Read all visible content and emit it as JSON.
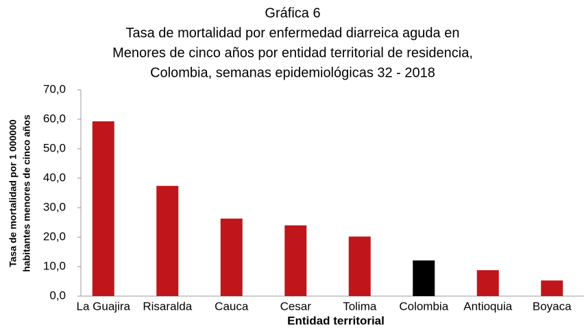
{
  "chart_data": {
    "type": "bar",
    "title": [
      "Gráfica 6",
      "Tasa de mortalidad por enfermedad diarreica aguda en",
      "Menores de cinco años por entidad territorial de residencia,",
      "Colombia, semanas epidemiológicas 32 - 2018"
    ],
    "x_label": "Entidad territorial",
    "y_label": [
      "Tasa de mortalidad por 1 000000",
      "habitantes menores de cinco años"
    ],
    "categories": [
      "La Guajira",
      "Risaralda",
      "Cauca",
      "Cesar",
      "Tolima",
      "Colombia",
      "Antioquia",
      "Boyaca"
    ],
    "values": [
      59.3,
      37.4,
      26.3,
      24.0,
      20.2,
      12.1,
      8.8,
      5.3
    ],
    "colors": [
      "#c0161b",
      "#c0161b",
      "#c0161b",
      "#c0161b",
      "#c0161b",
      "#000000",
      "#c0161b",
      "#c0161b"
    ],
    "ylim": [
      0,
      70
    ],
    "yticks": [
      {
        "value": 0,
        "label": "0,0"
      },
      {
        "value": 10,
        "label": "10,0"
      },
      {
        "value": 20,
        "label": "20,0"
      },
      {
        "value": 30,
        "label": "30,0"
      },
      {
        "value": 40,
        "label": "40,0"
      },
      {
        "value": 50,
        "label": "50,0"
      },
      {
        "value": 60,
        "label": "60,0"
      },
      {
        "value": 70,
        "label": "70,0"
      }
    ],
    "grid": false
  }
}
